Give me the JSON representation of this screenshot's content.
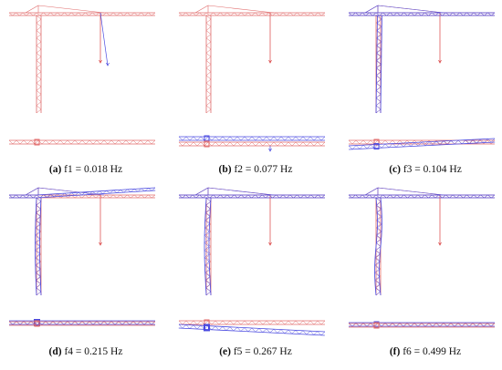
{
  "figure": {
    "panels": [
      {
        "id": "a",
        "letter": "(a)",
        "label": "f1 = 0.018 Hz",
        "mode": 1
      },
      {
        "id": "b",
        "letter": "(b)",
        "label": "f2 = 0.077 Hz",
        "mode": 2
      },
      {
        "id": "c",
        "letter": "(c)",
        "label": "f3 = 0.104 Hz",
        "mode": 3
      },
      {
        "id": "d",
        "letter": "(d)",
        "label": "f4 = 0.215 Hz",
        "mode": 4
      },
      {
        "id": "e",
        "letter": "(e)",
        "label": "f5 = 0.267 Hz",
        "mode": 5
      },
      {
        "id": "f",
        "letter": "(f)",
        "label": "f6 = 0.499 Hz",
        "mode": 6
      }
    ],
    "colors": {
      "original_shape": "#e06a6a",
      "deformed_shape": "#4a4ae0",
      "hook_line": "#d94040"
    }
  }
}
